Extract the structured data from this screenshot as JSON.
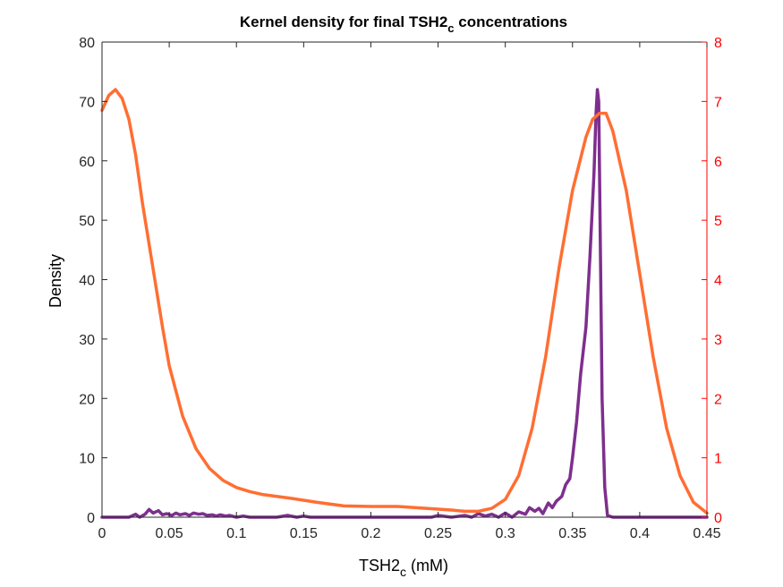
{
  "chart_data": {
    "type": "line",
    "title": {
      "main": "Kernel density for final TSH2",
      "sub": "c",
      "rest": " concentrations"
    },
    "xlabel": {
      "main": "TSH2",
      "sub": "c",
      "rest": " (mM)"
    },
    "ylabel": "Density",
    "xlim": [
      0,
      0.45
    ],
    "ylim_left": [
      0,
      80
    ],
    "ylim_right": [
      0,
      8
    ],
    "xticks": [
      "0",
      "0.05",
      "0.1",
      "0.15",
      "0.2",
      "0.25",
      "0.3",
      "0.35",
      "0.4",
      "0.45"
    ],
    "yticks_left": [
      "0",
      "10",
      "20",
      "30",
      "40",
      "50",
      "60",
      "70",
      "80"
    ],
    "yticks_right": [
      "0",
      "1",
      "2",
      "3",
      "4",
      "5",
      "6",
      "7",
      "8"
    ],
    "grid": false,
    "colors": {
      "left_series": "#7E2F8E",
      "right_series": "#FF6E33",
      "right_axis": "#FF0000",
      "axis": "#262626"
    },
    "series": [
      {
        "axis": "left",
        "color": "#7E2F8E",
        "x": [
          0,
          0.02,
          0.025,
          0.028,
          0.032,
          0.035,
          0.038,
          0.042,
          0.045,
          0.048,
          0.052,
          0.055,
          0.058,
          0.062,
          0.065,
          0.068,
          0.072,
          0.075,
          0.078,
          0.082,
          0.085,
          0.088,
          0.092,
          0.095,
          0.1,
          0.105,
          0.11,
          0.13,
          0.138,
          0.145,
          0.15,
          0.155,
          0.16,
          0.2,
          0.245,
          0.25,
          0.26,
          0.27,
          0.275,
          0.28,
          0.285,
          0.29,
          0.295,
          0.3,
          0.305,
          0.31,
          0.315,
          0.318,
          0.322,
          0.325,
          0.328,
          0.332,
          0.335,
          0.338,
          0.342,
          0.345,
          0.348,
          0.35,
          0.353,
          0.356,
          0.36,
          0.363,
          0.366,
          0.3675,
          0.3685,
          0.3695,
          0.3705,
          0.372,
          0.374,
          0.376,
          0.38,
          0.4,
          0.45
        ],
        "y": [
          0,
          0,
          0.5,
          0,
          0.5,
          1.3,
          0.7,
          1.1,
          0.4,
          0.6,
          0.3,
          0.7,
          0.4,
          0.6,
          0.3,
          0.7,
          0.5,
          0.6,
          0.3,
          0.4,
          0.2,
          0.4,
          0.2,
          0.3,
          0,
          0.2,
          0,
          0,
          0.3,
          0,
          0.2,
          0,
          0,
          0,
          0,
          0.3,
          0,
          0.3,
          0,
          0.6,
          0.2,
          0.5,
          0,
          0.7,
          0,
          0.9,
          0.5,
          1.6,
          1.0,
          1.5,
          0.6,
          2.4,
          1.6,
          2.7,
          3.5,
          5.5,
          6.5,
          10,
          16,
          24,
          32,
          44,
          58,
          68,
          72,
          70,
          50,
          20,
          5,
          0.3,
          0,
          0,
          0
        ]
      },
      {
        "axis": "right",
        "color": "#FF6E33",
        "x": [
          0,
          0.005,
          0.01,
          0.015,
          0.02,
          0.025,
          0.03,
          0.035,
          0.04,
          0.045,
          0.05,
          0.06,
          0.07,
          0.08,
          0.09,
          0.1,
          0.11,
          0.12,
          0.14,
          0.16,
          0.18,
          0.2,
          0.22,
          0.24,
          0.26,
          0.27,
          0.28,
          0.29,
          0.3,
          0.31,
          0.32,
          0.33,
          0.34,
          0.35,
          0.36,
          0.365,
          0.37,
          0.375,
          0.38,
          0.39,
          0.4,
          0.41,
          0.42,
          0.43,
          0.44,
          0.45
        ],
        "y": [
          6.85,
          7.1,
          7.2,
          7.05,
          6.7,
          6.1,
          5.3,
          4.6,
          3.9,
          3.2,
          2.55,
          1.7,
          1.15,
          0.82,
          0.62,
          0.5,
          0.43,
          0.38,
          0.32,
          0.25,
          0.19,
          0.18,
          0.18,
          0.15,
          0.12,
          0.1,
          0.1,
          0.15,
          0.3,
          0.7,
          1.5,
          2.7,
          4.2,
          5.5,
          6.4,
          6.7,
          6.8,
          6.8,
          6.5,
          5.5,
          4.1,
          2.7,
          1.5,
          0.7,
          0.25,
          0.07
        ]
      }
    ]
  }
}
